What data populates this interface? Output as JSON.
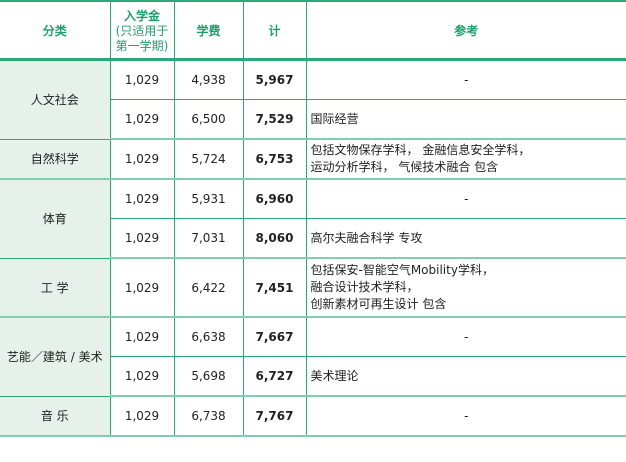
{
  "header": {
    "category": "分类",
    "admission_fee": "入学金",
    "admission_fee_note": "(只适用于第一学期)",
    "tuition": "学费",
    "total": "计",
    "remarks": "参考"
  },
  "groups": [
    {
      "category": "人文社会",
      "rows": [
        {
          "admission": "1,029",
          "tuition": "4,938",
          "total": "5,967",
          "note": [
            "-"
          ]
        },
        {
          "admission": "1,029",
          "tuition": "6,500",
          "total": "7,529",
          "note": [
            "国际经营"
          ]
        }
      ]
    },
    {
      "category": "自然科学",
      "rows": [
        {
          "admission": "1,029",
          "tuition": "5,724",
          "total": "6,753",
          "note": [
            "包括文物保存学科，  金融信息安全学科，",
            "运动分析学科，  气候技术融合  包含"
          ]
        }
      ]
    },
    {
      "category": "体育",
      "rows": [
        {
          "admission": "1,029",
          "tuition": "5,931",
          "total": "6,960",
          "note": [
            "-"
          ]
        },
        {
          "admission": "1,029",
          "tuition": "7,031",
          "total": "8,060",
          "note": [
            "高尔夫融合科学  专攻"
          ]
        }
      ]
    },
    {
      "category": "工  学",
      "rows": [
        {
          "admission": "1,029",
          "tuition": "6,422",
          "total": "7,451",
          "note": [
            "包括保安-智能空气Mobility学科，",
            "融合设计技术学科，",
            "创新素材可再生设计  包含"
          ]
        }
      ]
    },
    {
      "category": "艺能／建筑 / 美术",
      "rows": [
        {
          "admission": "1,029",
          "tuition": "6,638",
          "total": "7,667",
          "note": [
            "-"
          ]
        },
        {
          "admission": "1,029",
          "tuition": "5,698",
          "total": "6,727",
          "note": [
            "美术理论"
          ]
        }
      ]
    },
    {
      "category": "音  乐",
      "rows": [
        {
          "admission": "1,029",
          "tuition": "6,738",
          "total": "7,767",
          "note": [
            "-"
          ]
        }
      ]
    }
  ]
}
